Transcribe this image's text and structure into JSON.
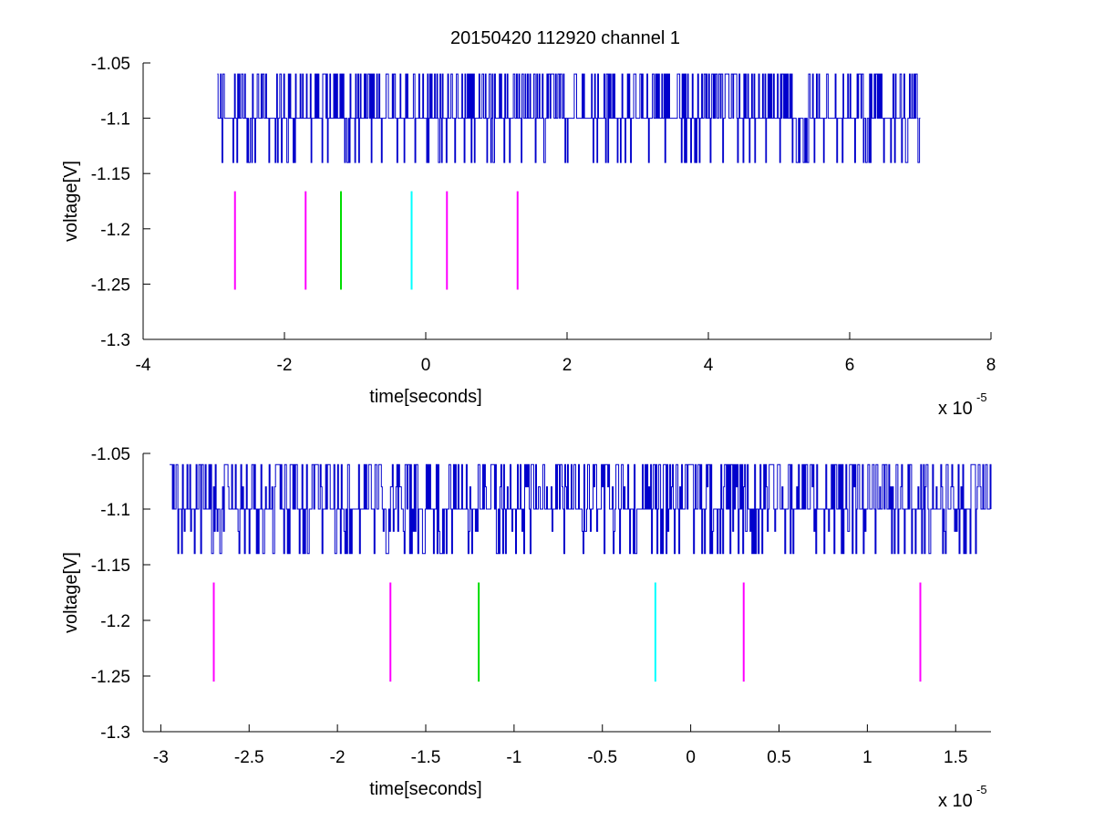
{
  "figure": {
    "title": "20150420 112920 channel 1"
  },
  "chart_data": [
    {
      "type": "line",
      "name": "overview",
      "title": "20150420 112920 channel 1",
      "xlabel": "time[seconds]",
      "ylabel": "voltage[V]",
      "x_scale_label": "x 10",
      "x_scale_exponent": "-5",
      "xlim": [
        -4,
        8
      ],
      "ylim": [
        -1.3,
        -1.05
      ],
      "xticks": [
        -4,
        -2,
        0,
        2,
        4,
        6,
        8
      ],
      "xtick_labels": [
        "-4",
        "-2",
        "0",
        "2",
        "4",
        "6",
        "8"
      ],
      "yticks": [
        -1.05,
        -1.1,
        -1.15,
        -1.2,
        -1.25,
        -1.3
      ],
      "ytick_labels": [
        "-1.05",
        "-1.1",
        "-1.15",
        "-1.2",
        "-1.25",
        "-1.3"
      ],
      "grid": false,
      "signal": {
        "color": "#0000cc",
        "x_start": -2.95,
        "x_end": 7.0,
        "baseline": -1.1,
        "levels": [
          -1.06,
          -1.14
        ]
      },
      "markers": [
        {
          "x": -2.7,
          "y_top": -1.166,
          "y_bottom": -1.255,
          "color": "#ff00ff"
        },
        {
          "x": -1.7,
          "y_top": -1.166,
          "y_bottom": -1.255,
          "color": "#ff00ff"
        },
        {
          "x": -1.2,
          "y_top": -1.166,
          "y_bottom": -1.255,
          "color": "#00dd00"
        },
        {
          "x": -0.2,
          "y_top": -1.166,
          "y_bottom": -1.255,
          "color": "#00ffff"
        },
        {
          "x": 0.3,
          "y_top": -1.166,
          "y_bottom": -1.255,
          "color": "#ff00ff"
        },
        {
          "x": 1.3,
          "y_top": -1.166,
          "y_bottom": -1.255,
          "color": "#ff00ff"
        }
      ]
    },
    {
      "type": "line",
      "name": "zoom",
      "title": "",
      "xlabel": "time[seconds]",
      "ylabel": "voltage[V]",
      "x_scale_label": "x 10",
      "x_scale_exponent": "-5",
      "xlim": [
        -3.1,
        1.7
      ],
      "ylim": [
        -1.3,
        -1.05
      ],
      "xticks": [
        -3,
        -2.5,
        -2,
        -1.5,
        -1,
        -0.5,
        0,
        0.5,
        1,
        1.5
      ],
      "xtick_labels": [
        "-3",
        "-2.5",
        "-2",
        "-1.5",
        "-1",
        "-0.5",
        "0",
        "0.5",
        "1",
        "1.5"
      ],
      "yticks": [
        -1.05,
        -1.1,
        -1.15,
        -1.2,
        -1.25,
        -1.3
      ],
      "ytick_labels": [
        "-1.05",
        "-1.1",
        "-1.15",
        "-1.2",
        "-1.25",
        "-1.3"
      ],
      "grid": false,
      "signal": {
        "color": "#0000cc",
        "x_start": -2.95,
        "x_end": 1.7,
        "baseline": -1.1,
        "levels": [
          -1.06,
          -1.14,
          -1.12,
          -1.08
        ]
      },
      "markers": [
        {
          "x": -2.7,
          "y_top": -1.166,
          "y_bottom": -1.255,
          "color": "#ff00ff"
        },
        {
          "x": -1.7,
          "y_top": -1.166,
          "y_bottom": -1.255,
          "color": "#ff00ff"
        },
        {
          "x": -1.2,
          "y_top": -1.166,
          "y_bottom": -1.255,
          "color": "#00dd00"
        },
        {
          "x": -0.2,
          "y_top": -1.166,
          "y_bottom": -1.255,
          "color": "#00ffff"
        },
        {
          "x": 0.3,
          "y_top": -1.166,
          "y_bottom": -1.255,
          "color": "#ff00ff"
        },
        {
          "x": 1.3,
          "y_top": -1.166,
          "y_bottom": -1.255,
          "color": "#ff00ff"
        }
      ]
    }
  ]
}
